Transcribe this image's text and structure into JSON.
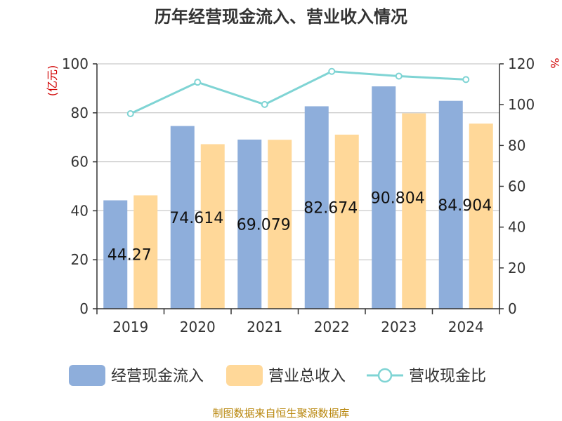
{
  "chart_data": {
    "type": "bar",
    "title": "历年经营现金流入、营业收入情况",
    "categories": [
      "2019",
      "2020",
      "2021",
      "2022",
      "2023",
      "2024"
    ],
    "series": [
      {
        "name": "经营现金流入",
        "type": "bar",
        "axis": "left",
        "color": "#8eaedb",
        "values": [
          44.27,
          74.614,
          69.079,
          82.674,
          90.804,
          84.904
        ],
        "labels": [
          "44.27",
          "74.614",
          "69.079",
          "82.674",
          "90.804",
          "84.904"
        ]
      },
      {
        "name": "营业总收入",
        "type": "bar",
        "axis": "left",
        "color": "#ffd899",
        "values": [
          46.3,
          67.2,
          69.0,
          71.1,
          79.8,
          75.6
        ]
      },
      {
        "name": "营收现金比",
        "type": "line",
        "axis": "right",
        "color": "#7fd4d4",
        "values": [
          95.6,
          111.0,
          100.1,
          116.3,
          114.0,
          112.3
        ]
      }
    ],
    "y_left": {
      "label": "(亿元)",
      "range": [
        0,
        100
      ],
      "ticks": [
        0,
        20,
        40,
        60,
        80,
        100
      ]
    },
    "y_right": {
      "label": "%",
      "range": [
        0,
        120
      ],
      "ticks": [
        0,
        20,
        40,
        60,
        80,
        100,
        120
      ]
    },
    "grid": true,
    "legend_position": "bottom"
  },
  "source_text": "制图数据来自恒生聚源数据库"
}
